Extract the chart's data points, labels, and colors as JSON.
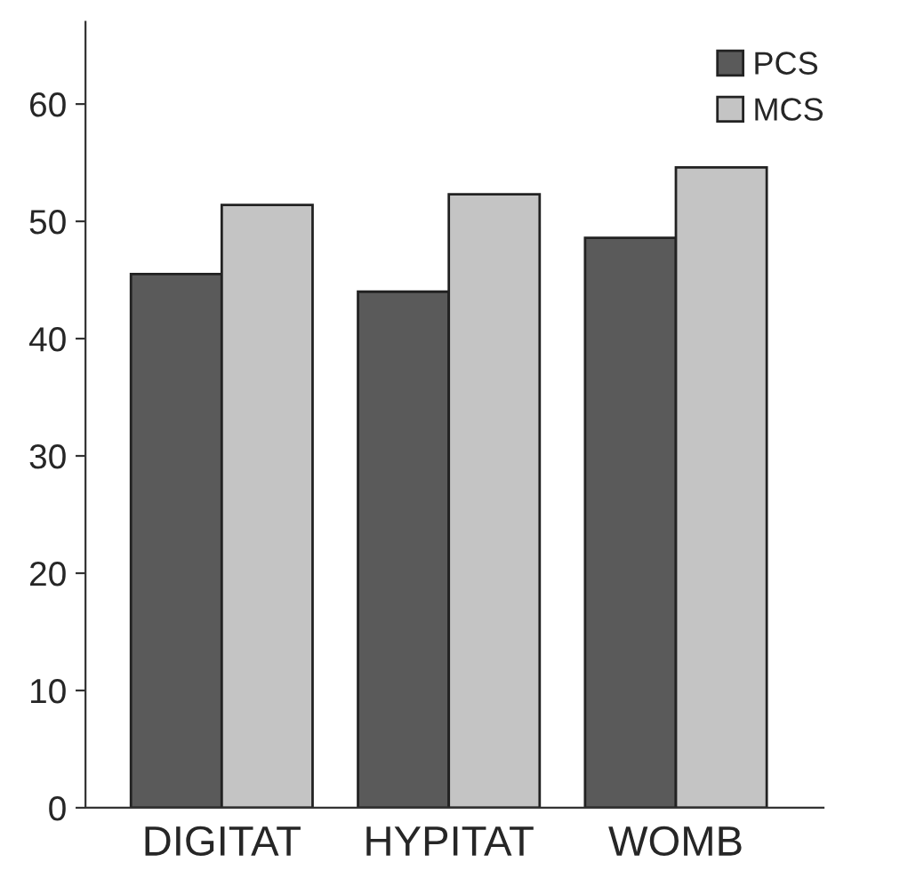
{
  "chart_data": {
    "type": "bar",
    "categories": [
      "DIGITAT",
      "HYPITAT",
      "WOMB"
    ],
    "series": [
      {
        "name": "PCS",
        "color": "#5a5a5a",
        "values": [
          45.5,
          44.0,
          48.6
        ]
      },
      {
        "name": "MCS",
        "color": "#c4c4c4",
        "values": [
          51.4,
          52.3,
          54.6
        ]
      }
    ],
    "ylim": [
      0,
      67
    ],
    "yticks": [
      0,
      10,
      20,
      30,
      40,
      50,
      60
    ],
    "grid": false,
    "legend": "top right"
  }
}
